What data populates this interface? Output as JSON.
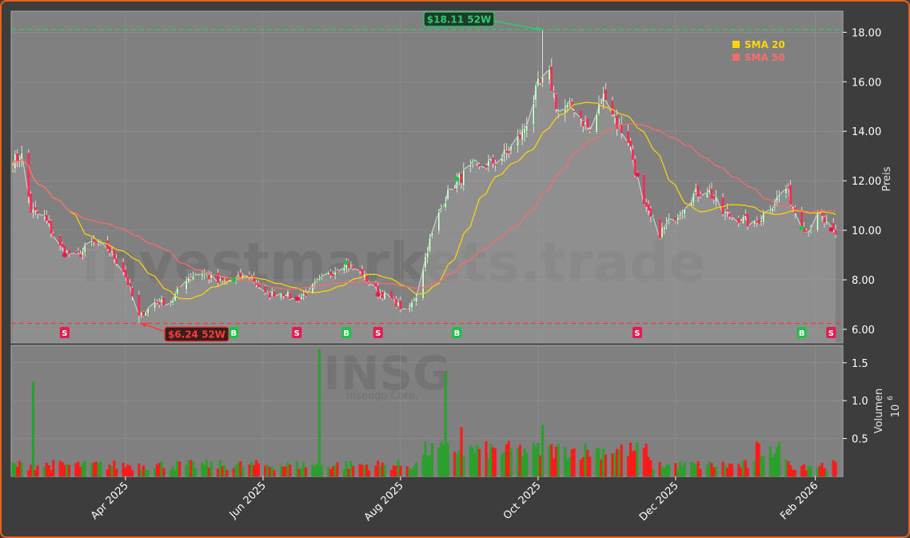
{
  "theme": {
    "background": "#3d3d3d",
    "plot_background": "#808080",
    "border": "#e8631a",
    "grid": "#9a9a9a",
    "up": "#2ca02c",
    "down": "#ff1a1a",
    "sma20": "#ffd700",
    "sma50": "#ff6b6b",
    "high_line": "#2ecc71",
    "low_line": "#ff3b3b",
    "axis_text": "#ffffff"
  },
  "chart_data": {
    "type": "candlestick",
    "ticker_watermark": "INSG",
    "ticker_subtitle": "Inseego Corp.",
    "site_watermark": "investmarkets.trade",
    "price_axis": {
      "label": "Preis",
      "ylim": [
        5.45,
        18.85
      ],
      "ticks": [
        "6.00",
        "8.00",
        "10.00",
        "12.00",
        "14.00",
        "16.00",
        "18.00"
      ],
      "tick_values": [
        6,
        8,
        10,
        12,
        14,
        16,
        18
      ]
    },
    "volume_axis": {
      "label": "Volumen",
      "exponent": "10",
      "exponent_power": "6",
      "ylim": [
        0,
        1.73
      ],
      "ticks": [
        "0.5",
        "1.0",
        "1.5"
      ],
      "tick_values": [
        0.5,
        1.0,
        1.5
      ]
    },
    "date_axis": {
      "start": "2025-02-10",
      "end": "2026-02-10",
      "ticks": [
        {
          "date": "2025-04-01",
          "label": "Apr 2025"
        },
        {
          "date": "2025-06-01",
          "label": "Jun 2025"
        },
        {
          "date": "2025-08-01",
          "label": "Aug 2025"
        },
        {
          "date": "2025-10-01",
          "label": "Oct 2025"
        },
        {
          "date": "2025-12-01",
          "label": "Dec 2025"
        },
        {
          "date": "2026-02-01",
          "label": "Feb 2026"
        }
      ]
    },
    "high_52w": {
      "value": 18.11,
      "date": "2025-10-03",
      "label": "$18.11 52W"
    },
    "low_52w": {
      "value": 6.24,
      "date": "2025-04-07",
      "label": "$6.24 52W"
    },
    "legend": [
      {
        "name": "SMA 20",
        "color": "#ffd700"
      },
      {
        "name": "SMA 50",
        "color": "#ff6b6b"
      }
    ],
    "close_anchors": [
      [
        "2025-02-10",
        12.8
      ],
      [
        "2025-02-14",
        13.0
      ],
      [
        "2025-02-18",
        10.8
      ],
      [
        "2025-02-24",
        10.5
      ],
      [
        "2025-03-03",
        9.3
      ],
      [
        "2025-03-10",
        8.9
      ],
      [
        "2025-03-17",
        9.5
      ],
      [
        "2025-03-24",
        9.3
      ],
      [
        "2025-03-31",
        8.4
      ],
      [
        "2025-04-07",
        6.5
      ],
      [
        "2025-04-14",
        7.1
      ],
      [
        "2025-04-21",
        7.1
      ],
      [
        "2025-04-28",
        8.1
      ],
      [
        "2025-05-05",
        8.3
      ],
      [
        "2025-05-12",
        7.9
      ],
      [
        "2025-05-19",
        8.0
      ],
      [
        "2025-05-26",
        8.2
      ],
      [
        "2025-06-02",
        7.4
      ],
      [
        "2025-06-09",
        7.5
      ],
      [
        "2025-06-16",
        7.2
      ],
      [
        "2025-06-23",
        7.7
      ],
      [
        "2025-06-30",
        8.2
      ],
      [
        "2025-07-07",
        8.7
      ],
      [
        "2025-07-14",
        8.3
      ],
      [
        "2025-07-21",
        7.6
      ],
      [
        "2025-07-28",
        7.2
      ],
      [
        "2025-08-04",
        6.7
      ],
      [
        "2025-08-08",
        7.4
      ],
      [
        "2025-08-13",
        9.3
      ],
      [
        "2025-08-20",
        11.2
      ],
      [
        "2025-08-27",
        12.1
      ],
      [
        "2025-09-03",
        12.6
      ],
      [
        "2025-09-10",
        12.7
      ],
      [
        "2025-09-17",
        13.1
      ],
      [
        "2025-09-24",
        13.9
      ],
      [
        "2025-10-01",
        15.8
      ],
      [
        "2025-10-06",
        16.2
      ],
      [
        "2025-10-10",
        14.8
      ],
      [
        "2025-10-17",
        15.0
      ],
      [
        "2025-10-24",
        14.0
      ],
      [
        "2025-10-31",
        15.6
      ],
      [
        "2025-11-05",
        14.3
      ],
      [
        "2025-11-10",
        13.7
      ],
      [
        "2025-11-17",
        10.9
      ],
      [
        "2025-11-24",
        9.9
      ],
      [
        "2025-12-01",
        10.6
      ],
      [
        "2025-12-08",
        11.4
      ],
      [
        "2025-12-15",
        11.7
      ],
      [
        "2025-12-22",
        10.7
      ],
      [
        "2025-12-29",
        10.5
      ],
      [
        "2026-01-05",
        10.2
      ],
      [
        "2026-01-12",
        11.0
      ],
      [
        "2026-01-19",
        11.7
      ],
      [
        "2026-01-23",
        10.8
      ],
      [
        "2026-01-28",
        10.0
      ],
      [
        "2026-02-03",
        10.6
      ],
      [
        "2026-02-10",
        9.7
      ]
    ],
    "volume_spikes": [
      [
        "2025-02-19",
        1.25
      ],
      [
        "2025-06-26",
        1.68
      ],
      [
        "2025-08-21",
        1.38
      ],
      [
        "2025-08-28",
        0.65
      ],
      [
        "2025-10-03",
        0.68
      ],
      [
        "2026-01-12",
        0.4
      ]
    ],
    "signals": [
      {
        "date": "2025-03-05",
        "type": "S"
      },
      {
        "date": "2025-05-19",
        "type": "B"
      },
      {
        "date": "2025-06-16",
        "type": "S"
      },
      {
        "date": "2025-07-08",
        "type": "B"
      },
      {
        "date": "2025-07-22",
        "type": "S"
      },
      {
        "date": "2025-08-26",
        "type": "B"
      },
      {
        "date": "2025-11-14",
        "type": "S"
      },
      {
        "date": "2026-01-26",
        "type": "B"
      },
      {
        "date": "2026-02-08",
        "type": "S"
      }
    ]
  }
}
